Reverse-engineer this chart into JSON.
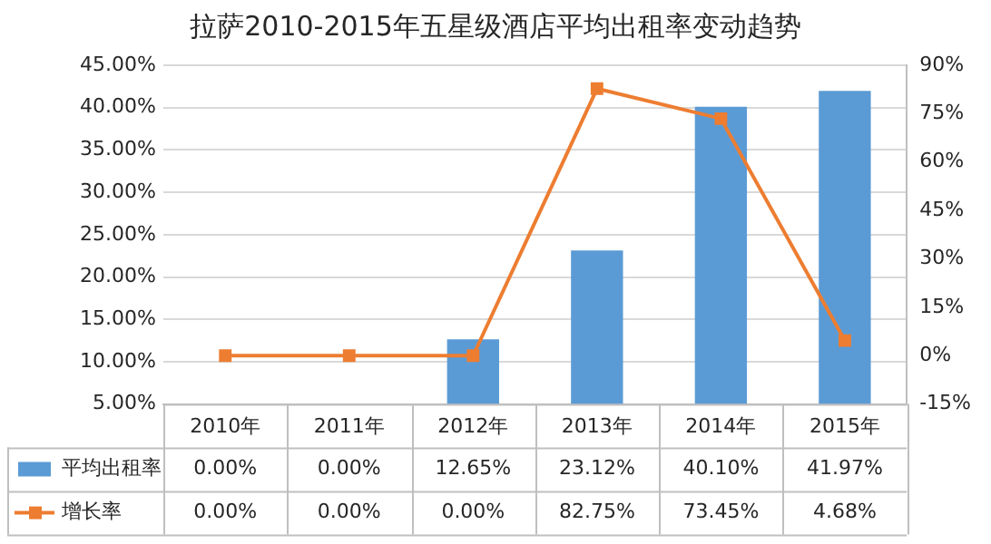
{
  "chart_data": {
    "type": "bar",
    "title": "拉萨2010-2015年五星级酒店平均出租率变动趋势",
    "categories": [
      "2010年",
      "2011年",
      "2012年",
      "2013年",
      "2014年",
      "2015年"
    ],
    "series": [
      {
        "name": "平均出租率",
        "color": "#5b9bd5",
        "values": [
          null,
          null,
          12.65,
          23.12,
          40.1,
          41.97
        ],
        "value_labels": [
          "0.00%",
          "0.00%",
          "12.65%",
          "23.12%",
          "40.10%",
          "41.97%"
        ]
      },
      {
        "name": "增长率",
        "type": "line",
        "axis": "y2",
        "color": "#ed7d31",
        "marker": "square",
        "values": [
          0,
          0,
          0,
          82.75,
          73.45,
          4.68
        ],
        "value_labels": [
          "0.00%",
          "0.00%",
          "0.00%",
          "82.75%",
          "73.45%",
          "4.68%"
        ]
      }
    ],
    "ylim": [
      5,
      45
    ],
    "yticks": [
      {
        "value": 5,
        "label": "5.00%"
      },
      {
        "value": 10,
        "label": "10.00%"
      },
      {
        "value": 15,
        "label": "15.00%"
      },
      {
        "value": 20,
        "label": "20.00%"
      },
      {
        "value": 25,
        "label": "25.00%"
      },
      {
        "value": 30,
        "label": "30.00%"
      },
      {
        "value": 35,
        "label": "35.00%"
      },
      {
        "value": 40,
        "label": "40.00%"
      },
      {
        "value": 45,
        "label": "45.00%"
      }
    ],
    "y2lim": [
      -15,
      90
    ],
    "y2ticks": [
      {
        "value": -15,
        "label": "-15%"
      },
      {
        "value": 0,
        "label": "0%"
      },
      {
        "value": 15,
        "label": "15%"
      },
      {
        "value": 30,
        "label": "30%"
      },
      {
        "value": 45,
        "label": "45%"
      },
      {
        "value": 60,
        "label": "60%"
      },
      {
        "value": 75,
        "label": "75%"
      },
      {
        "value": 90,
        "label": "90%"
      }
    ],
    "grid": "y",
    "legend": "bottom"
  }
}
